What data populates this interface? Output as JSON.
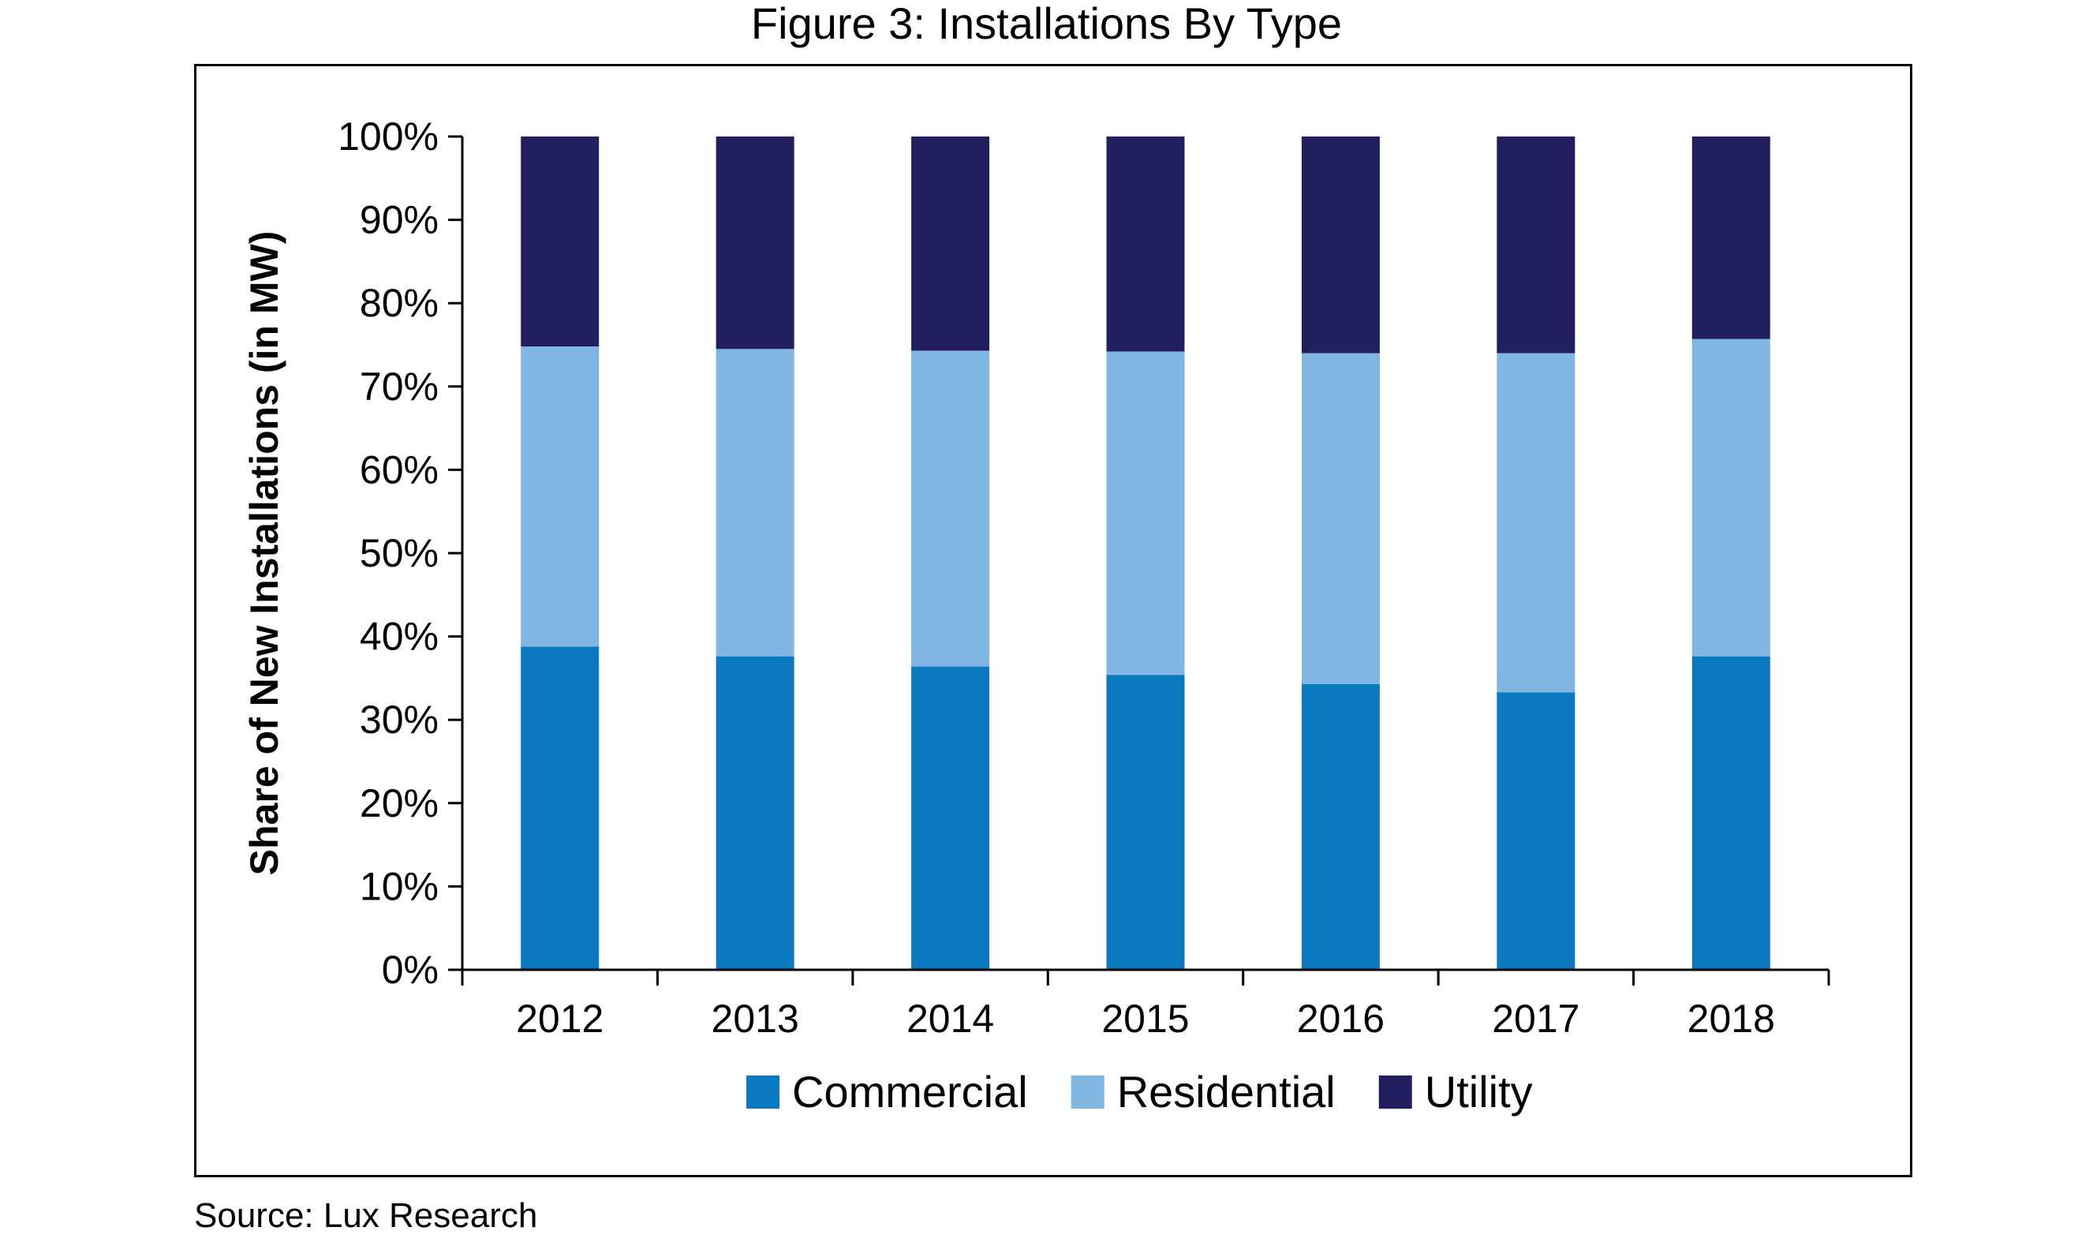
{
  "figure": {
    "title": "Figure 3: Installations By Type",
    "source": "Source: Lux Research"
  },
  "chart_data": {
    "type": "bar",
    "stacked": true,
    "title": "Figure 3: Installations By Type",
    "xlabel": "",
    "ylabel": "Share of New Installations (in MW)",
    "ylim": [
      0,
      100
    ],
    "y_ticks": [
      "0%",
      "10%",
      "20%",
      "30%",
      "40%",
      "50%",
      "60%",
      "70%",
      "80%",
      "90%",
      "100%"
    ],
    "categories": [
      "2012",
      "2013",
      "2014",
      "2015",
      "2016",
      "2017",
      "2018"
    ],
    "series": [
      {
        "name": "Commercial",
        "color": "#0a79c0",
        "values": [
          38.8,
          37.6,
          36.4,
          35.4,
          34.3,
          33.3,
          37.6
        ]
      },
      {
        "name": "Residential",
        "color": "#7fb6e2",
        "values": [
          36.0,
          36.9,
          37.9,
          38.8,
          39.7,
          40.7,
          38.1
        ]
      },
      {
        "name": "Utility",
        "color": "#211f5e",
        "values": [
          25.2,
          25.5,
          25.7,
          25.8,
          26.0,
          26.0,
          24.3
        ]
      }
    ],
    "legend_position": "bottom",
    "grid": false
  }
}
